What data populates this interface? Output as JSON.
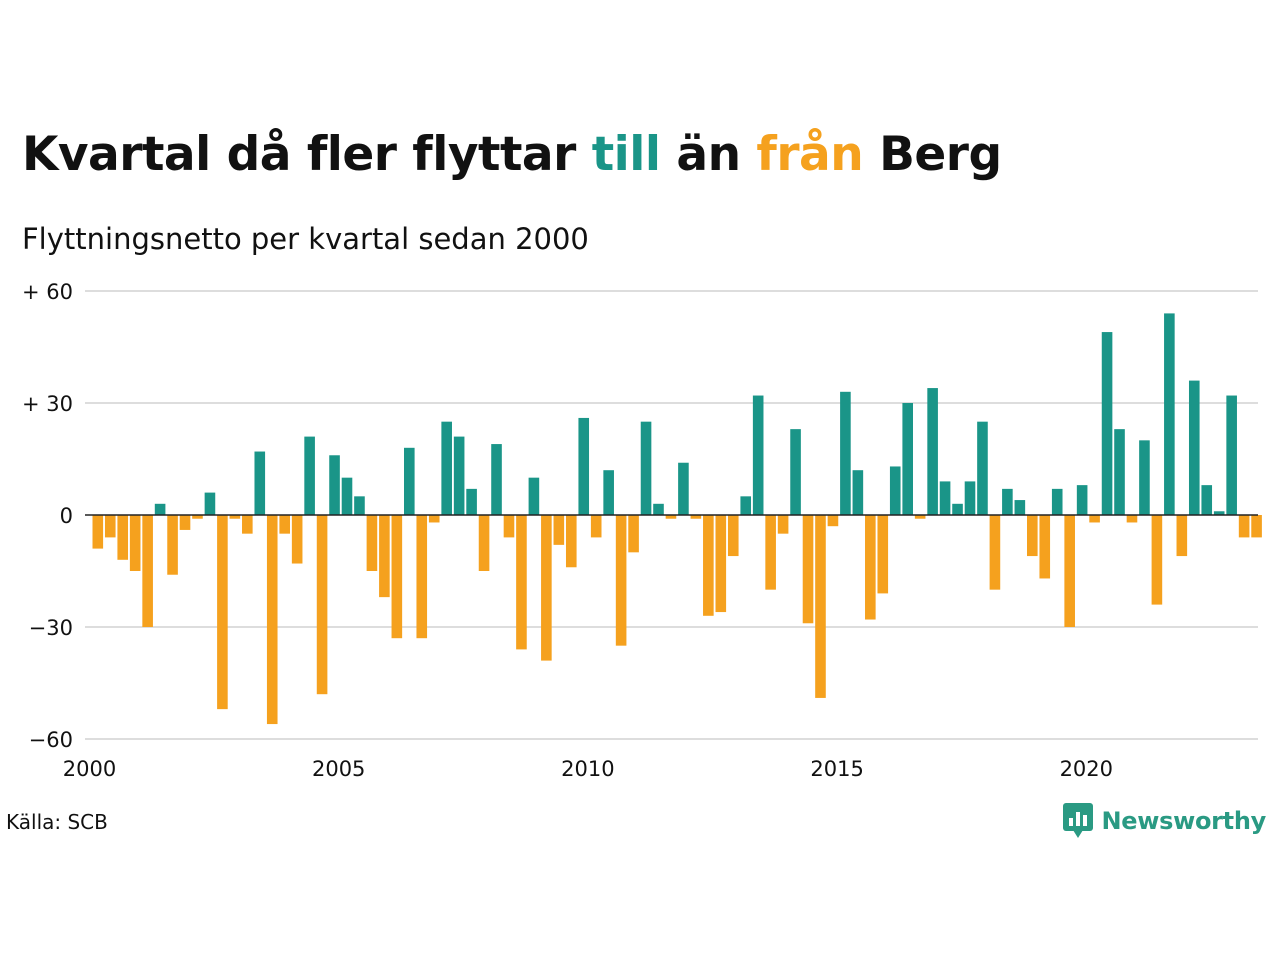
{
  "header": {
    "title_part1": "Kvartal då fler flyttar ",
    "title_till": "till",
    "title_part2": " än ",
    "title_fran": "från",
    "title_part3": " Berg",
    "subtitle": "Flyttningsnetto per kvartal sedan 2000"
  },
  "footer": {
    "source": "Källa: SCB",
    "brand": "Newsworthy"
  },
  "colors": {
    "positive": "#1a9588",
    "negative": "#f5a11e",
    "grid": "#dddddd",
    "axis": "#222222",
    "text": "#111111",
    "brand": "#2a9a83"
  },
  "chart_data": {
    "type": "bar",
    "title": "Kvartal då fler flyttar till än från Berg",
    "subtitle": "Flyttningsnetto per kvartal sedan 2000",
    "ylim": [
      -60,
      60
    ],
    "yticks": [
      60,
      30,
      0,
      -30,
      -60
    ],
    "ytick_labels": [
      "+ 60",
      "+ 30",
      "0",
      "−30",
      "−60"
    ],
    "xticks": [
      2000,
      2005,
      2010,
      2015,
      2020
    ],
    "xtick_labels": [
      "2000",
      "2005",
      "2010",
      "2015",
      "2020"
    ],
    "grid": true,
    "legend": "none",
    "start_year": 2000,
    "categories": [
      "2000K1",
      "2000K2",
      "2000K3",
      "2000K4",
      "2001K1",
      "2001K2",
      "2001K3",
      "2001K4",
      "2002K1",
      "2002K2",
      "2002K3",
      "2002K4",
      "2003K1",
      "2003K2",
      "2003K3",
      "2003K4",
      "2004K1",
      "2004K2",
      "2004K3",
      "2004K4",
      "2005K1",
      "2005K2",
      "2005K3",
      "2005K4",
      "2006K1",
      "2006K2",
      "2006K3",
      "2006K4",
      "2007K1",
      "2007K2",
      "2007K3",
      "2007K4",
      "2008K1",
      "2008K2",
      "2008K3",
      "2008K4",
      "2009K1",
      "2009K2",
      "2009K3",
      "2009K4",
      "2010K1",
      "2010K2",
      "2010K3",
      "2010K4",
      "2011K1",
      "2011K2",
      "2011K3",
      "2011K4",
      "2012K1",
      "2012K2",
      "2012K3",
      "2012K4",
      "2013K1",
      "2013K2",
      "2013K3",
      "2013K4",
      "2014K1",
      "2014K2",
      "2014K3",
      "2014K4",
      "2015K1",
      "2015K2",
      "2015K3",
      "2015K4",
      "2016K1",
      "2016K2",
      "2016K3",
      "2016K4",
      "2017K1",
      "2017K2",
      "2017K3",
      "2017K4",
      "2018K1",
      "2018K2",
      "2018K3",
      "2018K4",
      "2019K1",
      "2019K2",
      "2019K3",
      "2019K4",
      "2020K1",
      "2020K2",
      "2020K3",
      "2020K4",
      "2021K1",
      "2021K2",
      "2021K3",
      "2021K4",
      "2022K1",
      "2022K2",
      "2022K3",
      "2022K4",
      "2023K1",
      "2023K2"
    ],
    "values": [
      -9,
      -6,
      -12,
      -15,
      -30,
      3,
      -16,
      -4,
      -1,
      6,
      -52,
      -1,
      -5,
      17,
      -56,
      -5,
      -13,
      21,
      -48,
      16,
      10,
      5,
      -15,
      -22,
      -33,
      18,
      -33,
      -2,
      25,
      21,
      7,
      -15,
      19,
      -6,
      -36,
      10,
      -39,
      -8,
      -14,
      26,
      -6,
      12,
      -35,
      -10,
      25,
      3,
      -1,
      14,
      -1,
      -27,
      -26,
      -11,
      5,
      32,
      -20,
      -5,
      23,
      -29,
      -49,
      -3,
      33,
      12,
      -28,
      -21,
      13,
      30,
      -1,
      34,
      9,
      3,
      9,
      25,
      -20,
      7,
      4,
      -11,
      -17,
      7,
      -30,
      8,
      -2,
      49,
      23,
      -2,
      20,
      -24,
      54,
      -11,
      36,
      8,
      1,
      32,
      -6,
      -6
    ]
  }
}
